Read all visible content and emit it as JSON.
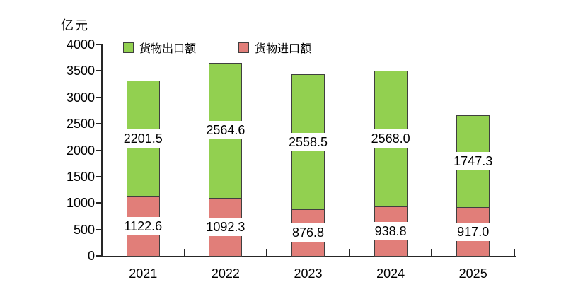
{
  "chart_data": {
    "type": "bar",
    "stacked": true,
    "title": "",
    "unit": "亿元",
    "categories": [
      "2021",
      "2022",
      "2023",
      "2024",
      "2025"
    ],
    "series": [
      {
        "name": "货物出口额",
        "color": "#92D050",
        "values": [
          2201.5,
          2564.6,
          2558.5,
          2568.0,
          1747.3
        ]
      },
      {
        "name": "货物进口额",
        "color": "#E17E79",
        "values": [
          1122.6,
          1092.3,
          876.8,
          938.8,
          917.0
        ]
      }
    ],
    "stack_order_bottom_to_top": [
      "货物进口额",
      "货物出口额"
    ],
    "ylim": [
      0,
      4000
    ],
    "yticks": [
      0,
      500,
      1000,
      1500,
      2000,
      2500,
      3000,
      3500,
      4000
    ],
    "grid": false,
    "legend_position": "top-inside",
    "data_labels": "segment-center-white-background"
  },
  "style": {
    "bar_border_color": "#3F3F3F",
    "axis_color": "#262626",
    "text_color": "#000000",
    "background": "#FFFFFF"
  }
}
